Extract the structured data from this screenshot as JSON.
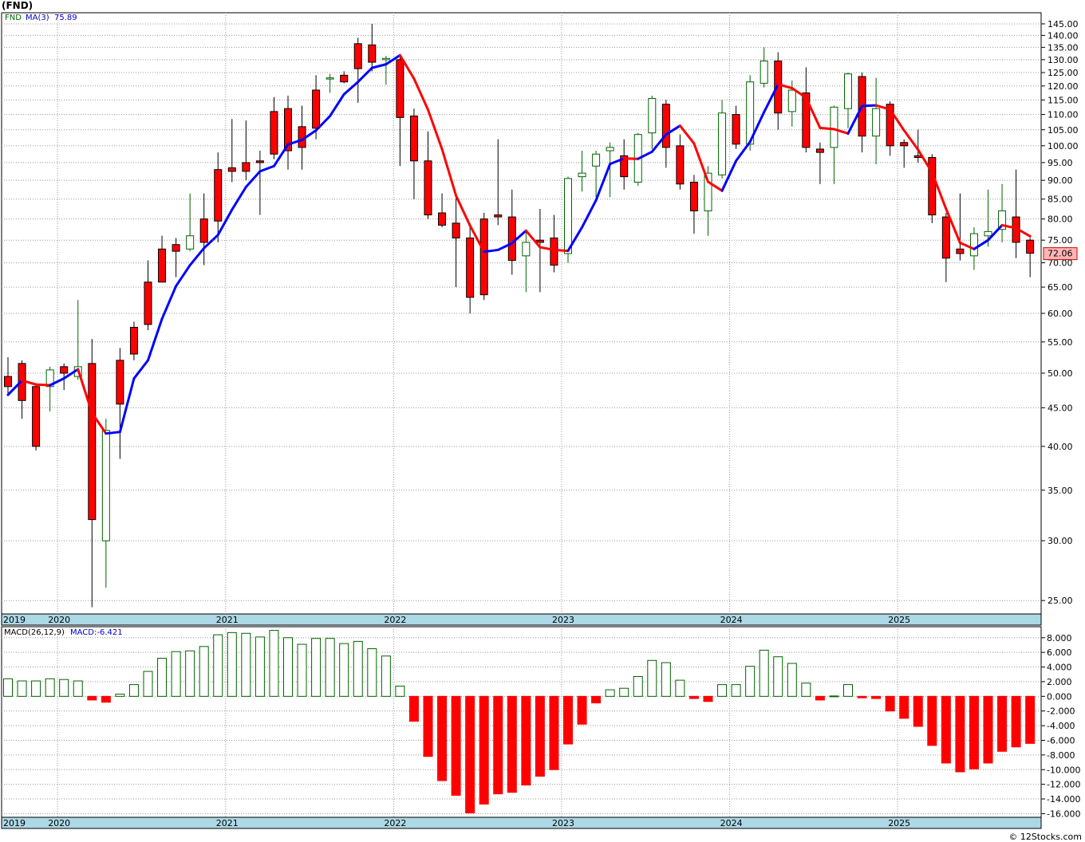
{
  "title": "(FND)",
  "credit": "© 12Stocks.com",
  "colors": {
    "up_candle_stroke": "#006400",
    "down_candle_fill": "#ff0000",
    "ma_up": "#0000ff",
    "ma_down": "#ff0000",
    "macd_pos": "#006400",
    "macd_neg": "#ff0000",
    "axis_band": "#add8e6",
    "grid": "#999999"
  },
  "chart_data": [
    {
      "type": "candlestick",
      "legend": {
        "symbol": "FND",
        "ma_label": "MA(3)",
        "ma_value": "75.89"
      },
      "last_price_label": "72.06",
      "yscale": "log",
      "ylim": [
        24,
        150
      ],
      "y_ticks": [
        "145.00",
        "140.00",
        "135.00",
        "130.00",
        "125.00",
        "120.00",
        "115.00",
        "110.00",
        "105.00",
        "100.00",
        "95.00",
        "90.00",
        "85.00",
        "80.00",
        "75.00",
        "70.00",
        "65.00",
        "60.00",
        "55.00",
        "50.00",
        "45.00",
        "40.00",
        "35.00",
        "30.00",
        "25.00"
      ],
      "x_labels": [
        {
          "label": "2019",
          "index": 0
        },
        {
          "label": "2020",
          "index": 4
        },
        {
          "label": "2021",
          "index": 16
        },
        {
          "label": "2022",
          "index": 28
        },
        {
          "label": "2023",
          "index": 40
        },
        {
          "label": "2024",
          "index": 52
        },
        {
          "label": "2025",
          "index": 64
        }
      ],
      "candles": [
        [
          49.5,
          52.5,
          47.0,
          48.0
        ],
        [
          51.5,
          52.0,
          43.5,
          46.0
        ],
        [
          48.0,
          48.5,
          39.5,
          40.0
        ],
        [
          48.0,
          51.0,
          44.5,
          50.5
        ],
        [
          51.0,
          51.5,
          47.5,
          50.0
        ],
        [
          49.5,
          62.5,
          49.0,
          51.0
        ],
        [
          51.5,
          55.5,
          24.5,
          32.0
        ],
        [
          30.0,
          43.5,
          26.0,
          42.0
        ],
        [
          52.0,
          54.0,
          38.5,
          45.5
        ],
        [
          57.5,
          58.5,
          52.0,
          53.0
        ],
        [
          66.0,
          70.5,
          57.0,
          58.0
        ],
        [
          73.0,
          76.0,
          66.0,
          66.0
        ],
        [
          74.0,
          75.5,
          67.0,
          72.5
        ],
        [
          73.0,
          86.5,
          72.5,
          76.0
        ],
        [
          80.0,
          86.5,
          69.5,
          74.5
        ],
        [
          93.0,
          98.0,
          74.5,
          79.5
        ],
        [
          93.5,
          108.5,
          89.5,
          92.5
        ],
        [
          95.0,
          108.0,
          90.0,
          92.5
        ],
        [
          95.5,
          98.5,
          81.0,
          95.0
        ],
        [
          111.0,
          116.0,
          96.0,
          97.5
        ],
        [
          112.0,
          116.5,
          93.0,
          98.5
        ],
        [
          106.0,
          113.0,
          93.0,
          99.5
        ],
        [
          118.5,
          124.0,
          102.0,
          105.5
        ],
        [
          123.0,
          124.5,
          117.5,
          123.0
        ],
        [
          124.0,
          125.5,
          121.0,
          121.5
        ],
        [
          136.5,
          139.0,
          114.0,
          126.5
        ],
        [
          136.0,
          145.0,
          125.5,
          129.0
        ],
        [
          130.0,
          131.5,
          120.5,
          130.5
        ],
        [
          130.0,
          131.0,
          94.0,
          109.0
        ],
        [
          109.5,
          112.0,
          85.0,
          95.5
        ],
        [
          95.5,
          104.5,
          80.0,
          81.0
        ],
        [
          81.5,
          86.5,
          78.0,
          78.5
        ],
        [
          79.0,
          85.5,
          65.0,
          75.5
        ],
        [
          75.5,
          79.0,
          60.0,
          63.0
        ],
        [
          80.0,
          81.5,
          62.5,
          63.5
        ],
        [
          81.0,
          102.0,
          78.5,
          80.5
        ],
        [
          80.5,
          87.5,
          67.5,
          70.5
        ],
        [
          71.5,
          77.5,
          64.0,
          74.5
        ],
        [
          75.0,
          82.5,
          64.0,
          74.5
        ],
        [
          75.5,
          81.0,
          68.0,
          69.5
        ],
        [
          72.0,
          91.0,
          70.0,
          90.5
        ],
        [
          91.0,
          98.5,
          87.0,
          92.0
        ],
        [
          94.0,
          98.5,
          85.5,
          97.5
        ],
        [
          98.5,
          101.0,
          85.5,
          99.5
        ],
        [
          97.0,
          102.0,
          87.5,
          91.0
        ],
        [
          89.5,
          104.0,
          88.5,
          103.5
        ],
        [
          104.0,
          116.5,
          99.0,
          115.5
        ],
        [
          113.5,
          115.0,
          93.5,
          99.5
        ],
        [
          100.0,
          103.5,
          87.5,
          89.0
        ],
        [
          89.5,
          91.5,
          76.5,
          82.0
        ],
        [
          82.0,
          94.0,
          76.0,
          92.0
        ],
        [
          91.5,
          115.0,
          90.5,
          110.5
        ],
        [
          110.0,
          113.0,
          99.0,
          100.5
        ],
        [
          100.5,
          124.0,
          98.5,
          121.5
        ],
        [
          121.0,
          135.0,
          119.5,
          129.5
        ],
        [
          129.5,
          133.0,
          105.0,
          110.5
        ],
        [
          111.0,
          122.0,
          106.0,
          118.5
        ],
        [
          117.5,
          127.0,
          98.0,
          99.5
        ],
        [
          99.0,
          101.0,
          89.0,
          98.0
        ],
        [
          99.5,
          113.0,
          89.0,
          112.5
        ],
        [
          112.0,
          125.0,
          105.5,
          124.5
        ],
        [
          123.5,
          125.0,
          98.0,
          103.0
        ],
        [
          103.0,
          123.0,
          94.5,
          112.0
        ],
        [
          113.5,
          114.5,
          97.0,
          100.0
        ],
        [
          101.0,
          102.0,
          93.5,
          100.0
        ],
        [
          97.0,
          105.0,
          95.0,
          96.5
        ],
        [
          96.5,
          97.5,
          79.0,
          81.0
        ],
        [
          80.5,
          81.5,
          66.0,
          71.0
        ],
        [
          73.0,
          86.5,
          70.5,
          72.0
        ],
        [
          71.5,
          78.0,
          68.5,
          76.5
        ],
        [
          76.0,
          87.5,
          73.5,
          77.0
        ],
        [
          77.5,
          89.0,
          74.5,
          82.0
        ],
        [
          80.5,
          93.0,
          71.0,
          74.5
        ],
        [
          75.0,
          75.5,
          67.0,
          72.06
        ]
      ],
      "ma3": [
        46.8,
        48.9,
        48.3,
        48.2,
        49.2,
        50.6,
        44.3,
        41.6,
        41.8,
        49.2,
        52.0,
        59.0,
        65.2,
        69.5,
        73.2,
        76.2,
        82.3,
        88.2,
        92.5,
        94.0,
        100.4,
        101.8,
        104.8,
        109.5,
        117.0,
        121.5,
        126.8,
        128.2,
        131.8,
        122.7,
        111.6,
        99.0,
        85.9,
        78.4,
        72.4,
        72.8,
        74.3,
        77.2,
        73.4,
        72.8,
        72.6,
        78.0,
        84.7,
        94.6,
        96.2,
        96.1,
        98.2,
        103.5,
        106.3,
        100.7,
        89.6,
        87.2,
        95.5,
        101.2,
        110.8,
        120.6,
        119.2,
        115.8,
        105.6,
        105.2,
        103.8,
        112.9,
        113.1,
        111.7,
        104.8,
        98.8,
        92.2,
        82.5,
        74.4,
        73.0,
        75.0,
        78.5,
        77.8,
        75.89
      ]
    },
    {
      "type": "bar",
      "legend": {
        "name": "MACD(26,12,9)",
        "value_label": "MACD:-6.421"
      },
      "ylim": [
        -16.5,
        9.5
      ],
      "y_ticks": [
        "8.000",
        "6.000",
        "4.000",
        "2.000",
        "0.000",
        "-2.000",
        "-4.000",
        "-6.000",
        "-8.000",
        "-10.000",
        "-12.000",
        "-14.000",
        "-16.000"
      ],
      "x_labels": [
        {
          "label": "2019",
          "index": 0
        },
        {
          "label": "2020",
          "index": 4
        },
        {
          "label": "2021",
          "index": 16
        },
        {
          "label": "2022",
          "index": 28
        },
        {
          "label": "2023",
          "index": 40
        },
        {
          "label": "2024",
          "index": 52
        },
        {
          "label": "2025",
          "index": 64
        }
      ],
      "values": [
        2.4,
        2.1,
        2.1,
        2.4,
        2.3,
        2.1,
        -0.5,
        -0.8,
        0.3,
        1.6,
        3.4,
        5.2,
        6.1,
        6.2,
        6.8,
        8.4,
        8.7,
        8.6,
        8.1,
        9.0,
        8.0,
        7.1,
        7.9,
        7.9,
        7.2,
        7.5,
        6.5,
        5.5,
        1.4,
        -3.4,
        -8.2,
        -11.5,
        -13.5,
        -15.9,
        -14.7,
        -13.3,
        -13.1,
        -12.1,
        -10.9,
        -10.0,
        -6.5,
        -3.8,
        -0.9,
        0.9,
        1.1,
        2.7,
        4.9,
        4.6,
        2.2,
        -0.3,
        -0.7,
        1.6,
        1.6,
        4.1,
        6.3,
        5.4,
        4.5,
        1.8,
        -0.5,
        0.05,
        1.6,
        -0.2,
        -0.3,
        -2.0,
        -3.0,
        -4.1,
        -6.7,
        -9.1,
        -10.3,
        -9.9,
        -9.1,
        -7.5,
        -6.9,
        -6.421
      ]
    }
  ]
}
